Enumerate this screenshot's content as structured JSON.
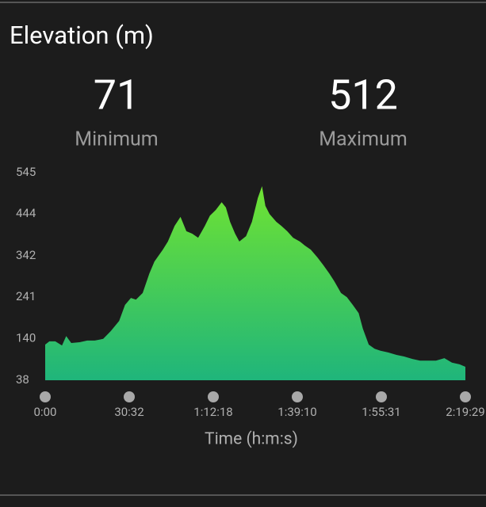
{
  "header": {
    "title": "Elevation (m)"
  },
  "stats": [
    {
      "value": 71,
      "label": "Minimum"
    },
    {
      "value": 512,
      "label": "Maximum"
    }
  ],
  "chart_data": {
    "type": "area",
    "xlabel": "Time (h:m:s)",
    "x": [
      0,
      0.05,
      0.12,
      0.2,
      0.25,
      0.31,
      0.41,
      0.5,
      0.59,
      0.69,
      0.78,
      0.88,
      0.95,
      1.02,
      1.08,
      1.16,
      1.24,
      1.3,
      1.4,
      1.46,
      1.54,
      1.61,
      1.68,
      1.75,
      1.82,
      1.9,
      1.96,
      2.03,
      2.1,
      2.15,
      2.2,
      2.26,
      2.31,
      2.39,
      2.46,
      2.53,
      2.58,
      2.62,
      2.67,
      2.75,
      2.81,
      2.88,
      2.95,
      3.03,
      3.09,
      3.16,
      3.24,
      3.31,
      3.38,
      3.44,
      3.52,
      3.59,
      3.66,
      3.73,
      3.78,
      3.85,
      3.92,
      3.99,
      4.08,
      4.18,
      4.27,
      4.37,
      4.46,
      4.56,
      4.65,
      4.75,
      4.84,
      4.93,
      5
    ],
    "values": [
      125,
      133,
      133,
      123,
      146,
      129,
      131,
      135,
      135,
      139,
      158,
      183,
      222,
      239,
      235,
      251,
      299,
      328,
      357,
      377,
      415,
      437,
      402,
      396,
      386,
      415,
      440,
      454,
      473,
      460,
      425,
      396,
      377,
      390,
      425,
      483,
      512,
      464,
      444,
      425,
      415,
      402,
      386,
      377,
      367,
      357,
      338,
      319,
      299,
      280,
      251,
      241,
      222,
      202,
      164,
      125,
      115,
      110,
      106,
      100,
      96,
      90,
      86,
      86,
      86,
      92,
      81,
      77,
      71
    ],
    "colors": [
      "#6fe332",
      "#1fb57b"
    ],
    "xlim": [
      0,
      5
    ],
    "xticks": [
      {
        "value": 0,
        "label": "0:00"
      },
      {
        "value": 1,
        "label": "30:32"
      },
      {
        "value": 2,
        "label": "1:12:18"
      },
      {
        "value": 3,
        "label": "1:39:10"
      },
      {
        "value": 4,
        "label": "1:55:31"
      },
      {
        "value": 5,
        "label": "2:19:29"
      }
    ],
    "ylim": [
      38,
      545
    ],
    "yticks": [
      38,
      140,
      241,
      342,
      444,
      545
    ]
  }
}
